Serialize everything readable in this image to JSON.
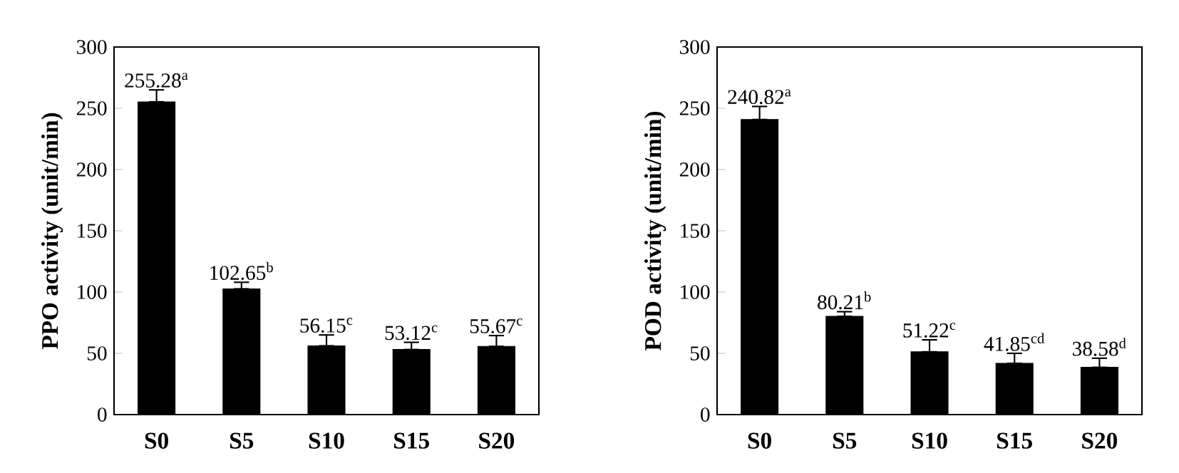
{
  "chart_data": [
    {
      "type": "bar",
      "ylabel": "PPO activity (unit/min)",
      "categories": [
        "S0",
        "S5",
        "S10",
        "S15",
        "S20"
      ],
      "color": "#000000",
      "values": [
        255.28,
        102.65,
        56.15,
        53.12,
        55.67
      ],
      "errors": [
        [
          255.28,
          265
        ],
        [
          102.65,
          108
        ],
        [
          56.15,
          65
        ],
        [
          53.12,
          59
        ],
        [
          55.67,
          64.5
        ]
      ],
      "value_labels": [
        "255.28$^{a}$",
        "102.65$^{b}$",
        "56.15$^{c}$",
        "53.12$^{c}$",
        "55.67$^{c}$"
      ],
      "ylim": [
        0,
        300
      ],
      "yticks": [
        0,
        50,
        100,
        150,
        200,
        250,
        300
      ]
    },
    {
      "type": "bar",
      "ylabel": "POD activity (unit/min)",
      "categories": [
        "S0",
        "S5",
        "S10",
        "S15",
        "S20"
      ],
      "color": "#000000",
      "values": [
        240.82,
        80.21,
        51.22,
        41.85,
        38.58
      ],
      "errors": [
        [
          240.82,
          251.5
        ],
        [
          80.21,
          84
        ],
        [
          51.22,
          61
        ],
        [
          41.85,
          50
        ],
        [
          38.58,
          46
        ]
      ],
      "value_labels": [
        "240.82$^{a}$",
        "80.21$^{b}$",
        "51.22$^{c}$",
        "41.85$^{cd}$",
        "38.58$^{d}$"
      ],
      "ylim": [
        0,
        300
      ],
      "yticks": [
        0,
        50,
        100,
        150,
        200,
        250,
        300
      ]
    }
  ]
}
